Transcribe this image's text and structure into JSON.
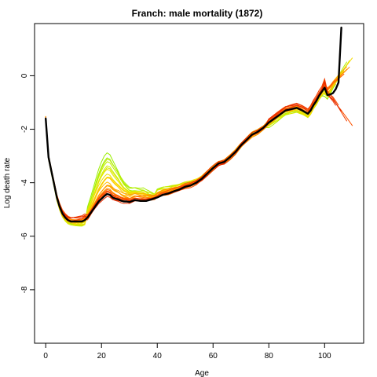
{
  "chart_data": {
    "type": "line",
    "title": "Franch: male mortality (1872)",
    "xlabel": "Age",
    "ylabel": "Log death rate",
    "xlim": [
      -4,
      114
    ],
    "ylim": [
      -10,
      1.95
    ],
    "x_ticks": [
      0,
      20,
      40,
      60,
      80,
      100
    ],
    "x_tick_labels": [
      "0",
      "20",
      "40",
      "60",
      "80",
      "100"
    ],
    "y_ticks": [
      0,
      -2,
      -4,
      -6,
      -8
    ],
    "y_tick_labels": [
      "0",
      "-2",
      "-4",
      "-6",
      "-8"
    ],
    "grid": false,
    "colors": {
      "highlight": "#000000",
      "background_series_gradient": [
        "#99ee00",
        "#d8ee00",
        "#ffd400",
        "#ff9a00",
        "#ff5a00",
        "#e62800"
      ]
    },
    "highlight_series": {
      "name": "1872",
      "x": [
        0,
        1,
        2,
        3,
        4,
        5,
        6,
        7,
        8,
        9,
        10,
        11,
        12,
        13,
        14,
        15,
        16,
        17,
        18,
        19,
        20,
        21,
        22,
        23,
        24,
        25,
        26,
        27,
        28,
        29,
        30,
        32,
        34,
        36,
        38,
        40,
        42,
        44,
        46,
        48,
        50,
        52,
        54,
        56,
        58,
        60,
        62,
        64,
        66,
        68,
        70,
        72,
        74,
        76,
        78,
        80,
        82,
        84,
        86,
        88,
        90,
        92,
        94,
        95,
        96,
        97,
        98,
        99,
        100,
        101,
        102,
        103,
        104,
        105,
        106
      ],
      "y": [
        -1.6,
        -3.05,
        -3.55,
        -4.05,
        -4.55,
        -4.9,
        -5.15,
        -5.3,
        -5.4,
        -5.45,
        -5.45,
        -5.45,
        -5.45,
        -5.45,
        -5.4,
        -5.3,
        -5.15,
        -5.0,
        -4.85,
        -4.7,
        -4.6,
        -4.5,
        -4.42,
        -4.45,
        -4.55,
        -4.6,
        -4.62,
        -4.67,
        -4.7,
        -4.7,
        -4.72,
        -4.65,
        -4.68,
        -4.68,
        -4.62,
        -4.55,
        -4.45,
        -4.4,
        -4.32,
        -4.25,
        -4.15,
        -4.1,
        -4.0,
        -3.85,
        -3.65,
        -3.45,
        -3.28,
        -3.22,
        -3.05,
        -2.85,
        -2.6,
        -2.4,
        -2.2,
        -2.1,
        -1.95,
        -1.75,
        -1.6,
        -1.45,
        -1.3,
        -1.25,
        -1.2,
        -1.3,
        -1.42,
        -1.3,
        -1.1,
        -0.95,
        -0.75,
        -0.6,
        -0.45,
        -0.72,
        -0.7,
        -0.65,
        -0.5,
        -0.25,
        1.8
      ]
    }
  }
}
